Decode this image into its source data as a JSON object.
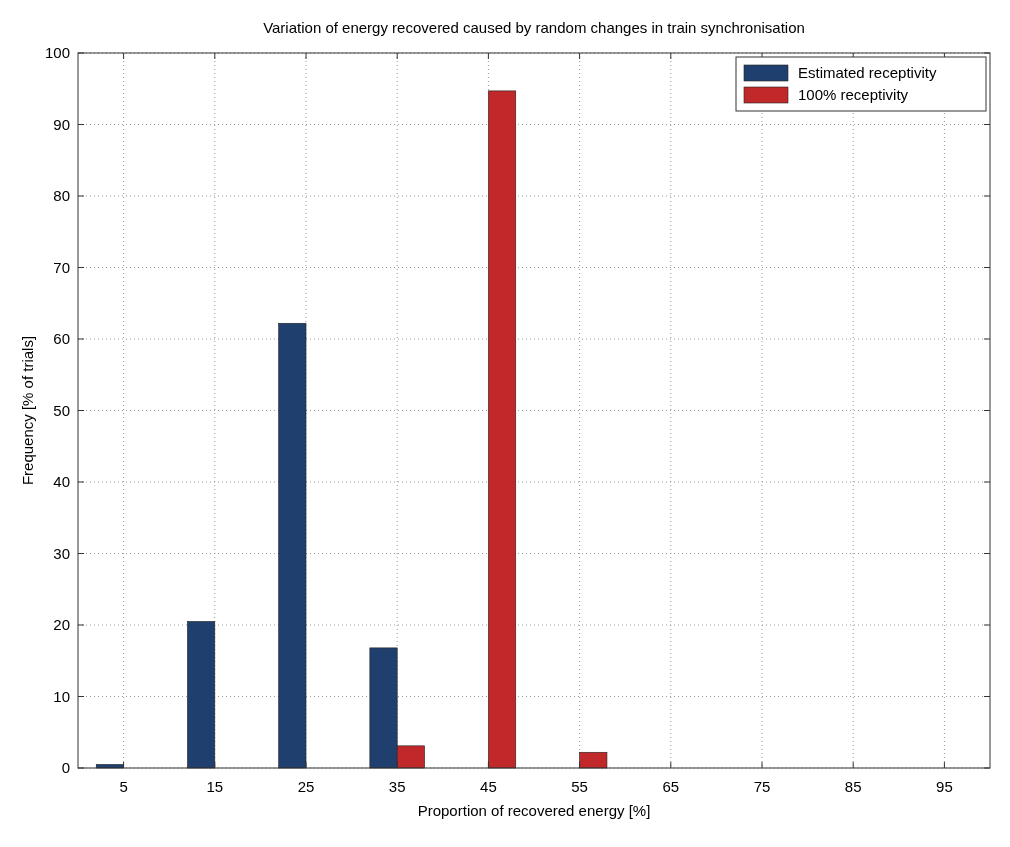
{
  "chart_data": {
    "type": "bar",
    "title": "Variation of energy recovered  caused by random changes in train synchronisation",
    "xlabel": "Proportion of recovered energy [%]",
    "ylabel": "Frequency [% of trials]",
    "categories": [
      "5",
      "15",
      "25",
      "35",
      "45",
      "55",
      "65",
      "75",
      "85",
      "95"
    ],
    "series": [
      {
        "name": "Estimated receptivity",
        "color": "#1f3f6e",
        "values": [
          0.5,
          20.5,
          62.2,
          16.8,
          0,
          0,
          0,
          0,
          0,
          0
        ]
      },
      {
        "name": "100% receptivity",
        "color": "#c0282a",
        "values": [
          0,
          0,
          0,
          3.1,
          94.7,
          2.2,
          0,
          0,
          0,
          0
        ]
      }
    ],
    "ylim": [
      0,
      100
    ],
    "yticks": [
      0,
      10,
      20,
      30,
      40,
      50,
      60,
      70,
      80,
      90,
      100
    ],
    "grid": true,
    "legend": "top right"
  }
}
